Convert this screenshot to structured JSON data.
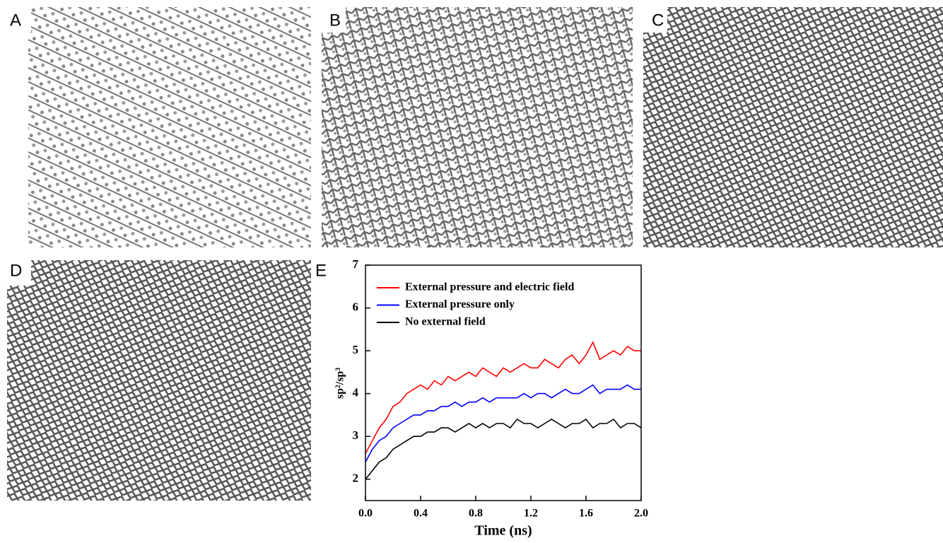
{
  "panels": [
    "A",
    "B",
    "C",
    "D"
  ],
  "chart_data": {
    "type": "line",
    "panel_label": "E",
    "x_label": "Time (ns)",
    "y_label": "sp²/sp³",
    "x": [
      0,
      0.05,
      0.1,
      0.15,
      0.2,
      0.25,
      0.3,
      0.35,
      0.4,
      0.45,
      0.5,
      0.55,
      0.6,
      0.65,
      0.7,
      0.75,
      0.8,
      0.85,
      0.9,
      0.95,
      1.0,
      1.05,
      1.1,
      1.15,
      1.2,
      1.25,
      1.3,
      1.35,
      1.4,
      1.45,
      1.5,
      1.55,
      1.6,
      1.65,
      1.7,
      1.75,
      1.8,
      1.85,
      1.9,
      1.95,
      2.0
    ],
    "series": [
      {
        "name": "External pressure and electric field",
        "color": "#ff0000",
        "values": [
          2.6,
          2.9,
          3.2,
          3.4,
          3.7,
          3.8,
          4.0,
          4.1,
          4.2,
          4.1,
          4.3,
          4.2,
          4.4,
          4.3,
          4.4,
          4.5,
          4.4,
          4.6,
          4.5,
          4.4,
          4.6,
          4.5,
          4.6,
          4.7,
          4.6,
          4.6,
          4.8,
          4.7,
          4.6,
          4.8,
          4.9,
          4.7,
          4.9,
          5.2,
          4.8,
          4.9,
          5.0,
          4.9,
          5.1,
          5.0,
          5.0
        ]
      },
      {
        "name": "External pressure only",
        "color": "#0000ff",
        "values": [
          2.4,
          2.7,
          2.9,
          3.0,
          3.2,
          3.3,
          3.4,
          3.5,
          3.5,
          3.6,
          3.6,
          3.7,
          3.7,
          3.8,
          3.7,
          3.8,
          3.8,
          3.9,
          3.8,
          3.9,
          3.9,
          3.9,
          3.9,
          4.0,
          3.9,
          4.0,
          4.0,
          3.9,
          4.0,
          4.1,
          4.0,
          4.0,
          4.1,
          4.2,
          4.0,
          4.1,
          4.1,
          4.1,
          4.2,
          4.1,
          4.1
        ]
      },
      {
        "name": "No external field",
        "color": "#000000",
        "values": [
          2.0,
          2.2,
          2.4,
          2.5,
          2.7,
          2.8,
          2.9,
          3.0,
          3.0,
          3.1,
          3.1,
          3.2,
          3.2,
          3.1,
          3.2,
          3.3,
          3.2,
          3.3,
          3.2,
          3.3,
          3.3,
          3.2,
          3.4,
          3.3,
          3.3,
          3.2,
          3.3,
          3.4,
          3.3,
          3.2,
          3.3,
          3.3,
          3.4,
          3.2,
          3.3,
          3.3,
          3.4,
          3.2,
          3.3,
          3.3,
          3.2
        ]
      }
    ],
    "xlim": [
      0,
      2.0
    ],
    "xticks": [
      {
        "value": 0,
        "label": "0.0"
      },
      0.4,
      0.8,
      1.2,
      1.6,
      {
        "value": 2.0,
        "label": "2.0"
      }
    ],
    "ylim": [
      1.5,
      7
    ],
    "yticks": [
      2,
      3,
      4,
      5,
      6,
      7
    ],
    "legend": "upper left"
  }
}
